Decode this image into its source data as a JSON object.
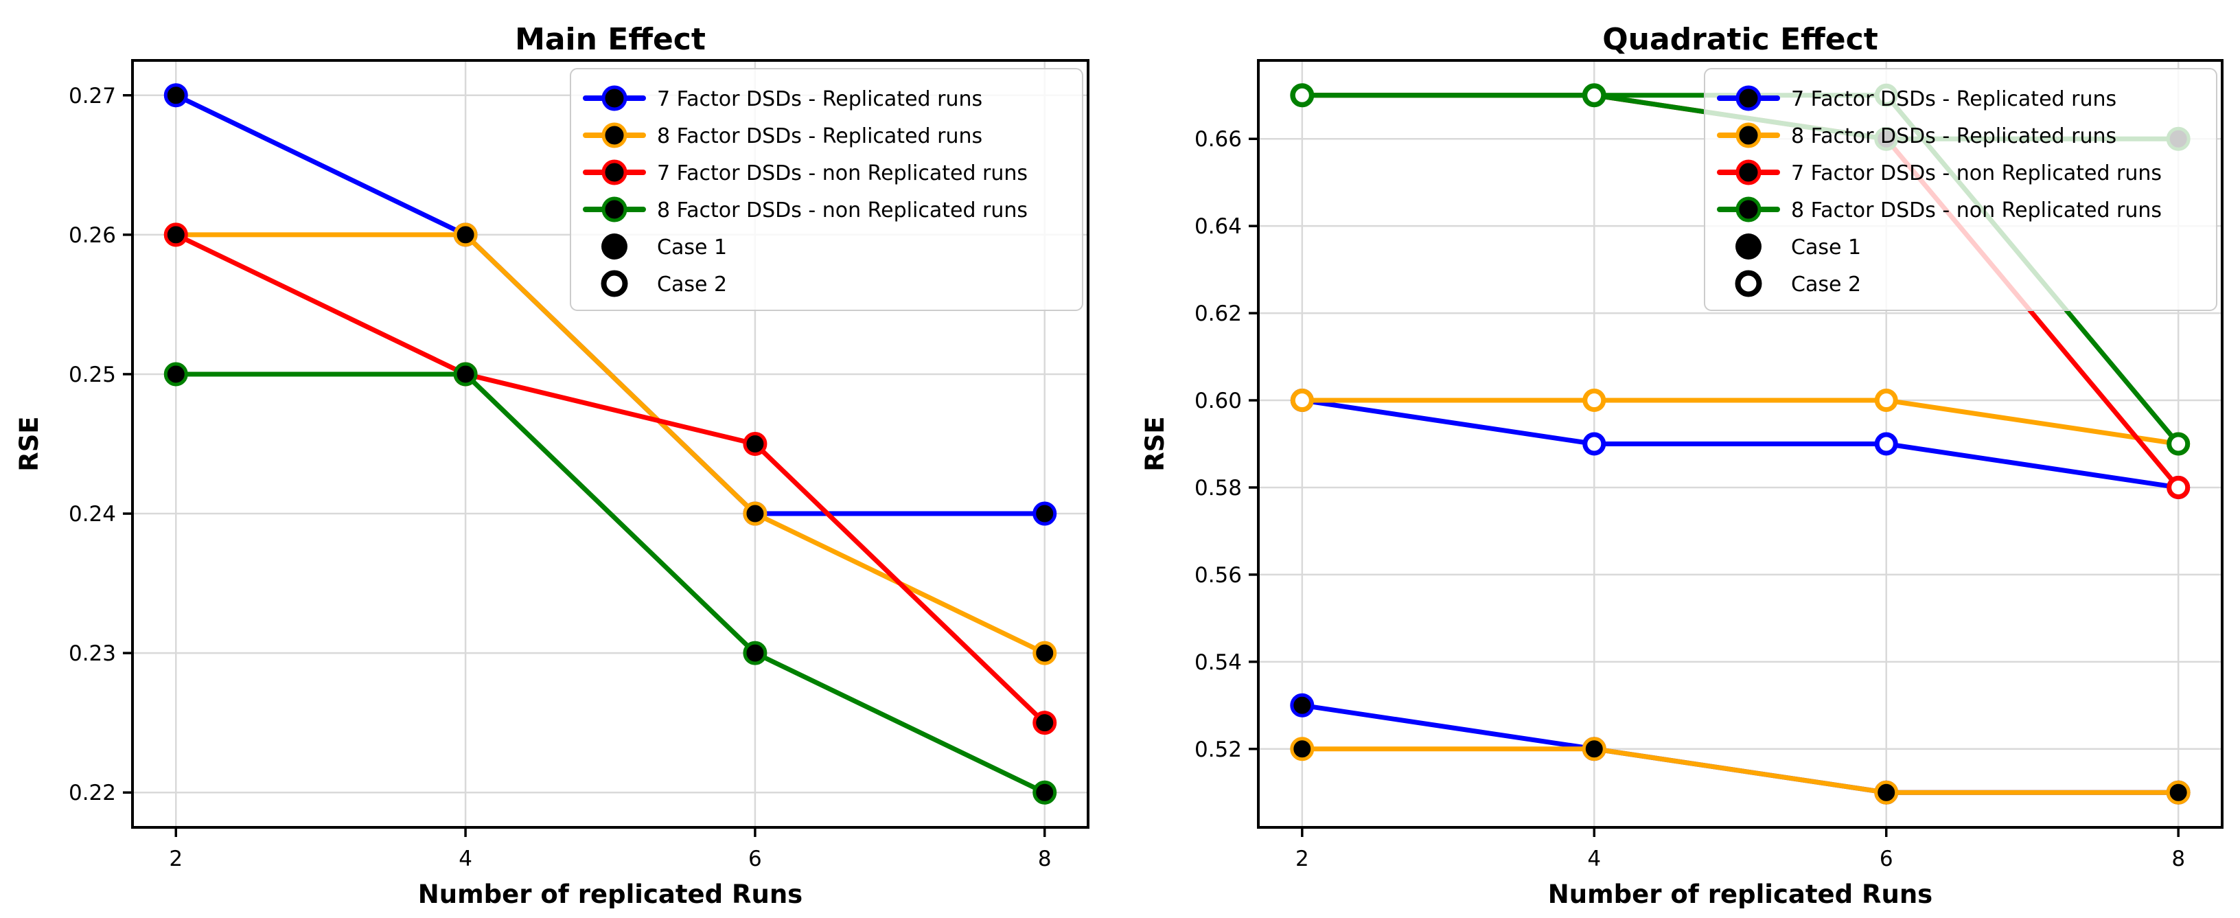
{
  "figure": {
    "background": "#ffffff",
    "grid_color": "#d9d9d9",
    "spine_color": "#000000"
  },
  "chart_data": [
    {
      "type": "line",
      "title": "Main Effect",
      "xlabel": "Number of replicated Runs",
      "ylabel": "RSE",
      "x": [
        2,
        4,
        6,
        8
      ],
      "xticks": [
        2,
        4,
        6,
        8
      ],
      "xtick_labels": [
        "2",
        "4",
        "6",
        "8"
      ],
      "yticks": [
        0.27,
        0.26,
        0.25,
        0.24,
        0.23,
        0.22
      ],
      "ytick_labels": [
        "0.27",
        "0.26",
        "0.25",
        "0.24",
        "0.23",
        "0.22"
      ],
      "xlim": [
        1.7,
        8.3
      ],
      "ylim": [
        0.2175,
        0.2725
      ],
      "grid": true,
      "legend_position": "upper right",
      "series": [
        {
          "name": "7 Factor DSDs - Replicated runs",
          "case": "Case 1",
          "marker": "filled",
          "color": "#0000ff",
          "values": [
            0.27,
            0.26,
            0.24,
            0.24
          ]
        },
        {
          "name": "8 Factor DSDs - Replicated runs",
          "case": "Case 1",
          "marker": "filled",
          "color": "#ffa500",
          "values": [
            0.26,
            0.26,
            0.24,
            0.23
          ]
        },
        {
          "name": "7 Factor DSDs - non Replicated runs",
          "case": "Case 1",
          "marker": "filled",
          "color": "#ff0000",
          "values": [
            0.26,
            0.25,
            0.245,
            0.225
          ]
        },
        {
          "name": "8 Factor DSDs - non Replicated runs",
          "case": "Case 1",
          "marker": "filled",
          "color": "#008000",
          "values": [
            0.25,
            0.25,
            0.23,
            0.22
          ]
        }
      ],
      "legend": {
        "series": [
          {
            "label": "7 Factor DSDs - Replicated runs",
            "color": "#0000ff"
          },
          {
            "label": "8 Factor DSDs - Replicated runs",
            "color": "#ffa500"
          },
          {
            "label": "7 Factor DSDs - non Replicated runs",
            "color": "#ff0000"
          },
          {
            "label": "8 Factor DSDs - non Replicated runs",
            "color": "#008000"
          }
        ],
        "markers": [
          {
            "label": "Case 1",
            "type": "filled"
          },
          {
            "label": "Case 2",
            "type": "open"
          }
        ]
      }
    },
    {
      "type": "line",
      "title": "Quadratic Effect",
      "xlabel": "Number of replicated Runs",
      "ylabel": "RSE",
      "x": [
        2,
        4,
        6,
        8
      ],
      "xticks": [
        2,
        4,
        6,
        8
      ],
      "xtick_labels": [
        "2",
        "4",
        "6",
        "8"
      ],
      "yticks": [
        0.66,
        0.64,
        0.62,
        0.6,
        0.58,
        0.56,
        0.54,
        0.52
      ],
      "ytick_labels": [
        "0.66",
        "0.64",
        "0.62",
        "0.60",
        "0.58",
        "0.56",
        "0.54",
        "0.52"
      ],
      "xlim": [
        1.7,
        8.3
      ],
      "ylim": [
        0.502,
        0.678
      ],
      "grid": true,
      "legend_position": "upper right",
      "series": [
        {
          "name": "7 Factor DSDs - Replicated runs",
          "case": "Case 1",
          "marker": "filled",
          "color": "#0000ff",
          "values": [
            0.53,
            0.52,
            0.51,
            0.51
          ]
        },
        {
          "name": "7 Factor DSDs - Replicated runs",
          "case": "Case 2",
          "marker": "open",
          "color": "#0000ff",
          "values": [
            0.6,
            0.59,
            0.59,
            0.58
          ]
        },
        {
          "name": "8 Factor DSDs - Replicated runs",
          "case": "Case 1",
          "marker": "filled",
          "color": "#ffa500",
          "values": [
            0.52,
            0.52,
            0.51,
            0.51
          ]
        },
        {
          "name": "8 Factor DSDs - Replicated runs",
          "case": "Case 2",
          "marker": "open",
          "color": "#ffa500",
          "values": [
            0.6,
            0.6,
            0.6,
            0.59
          ]
        },
        {
          "name": "7 Factor DSDs - non Replicated runs",
          "case": "Case 2",
          "marker": "open",
          "color": "#ff0000",
          "values": [
            0.67,
            0.67,
            0.66,
            0.58
          ]
        },
        {
          "name": "8 Factor DSDs - non Replicated runs",
          "case": "Case 1",
          "marker": "filled",
          "color": "#008000",
          "values": [
            0.67,
            0.67,
            0.66,
            0.66
          ]
        },
        {
          "name": "8 Factor DSDs - non Replicated runs",
          "case": "Case 2",
          "marker": "open",
          "color": "#008000",
          "values": [
            0.67,
            0.67,
            0.67,
            0.59
          ]
        }
      ],
      "legend": {
        "series": [
          {
            "label": "7 Factor DSDs - Replicated runs",
            "color": "#0000ff"
          },
          {
            "label": "8 Factor DSDs - Replicated runs",
            "color": "#ffa500"
          },
          {
            "label": "7 Factor DSDs - non Replicated runs",
            "color": "#ff0000"
          },
          {
            "label": "8 Factor DSDs - non Replicated runs",
            "color": "#008000"
          }
        ],
        "markers": [
          {
            "label": "Case 1",
            "type": "filled"
          },
          {
            "label": "Case 2",
            "type": "open"
          }
        ]
      }
    }
  ]
}
